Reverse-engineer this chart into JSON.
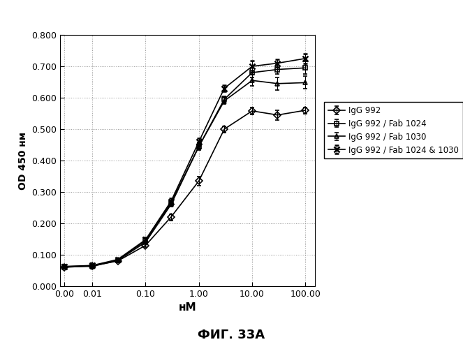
{
  "x": [
    0.003,
    0.01,
    0.03,
    0.1,
    0.3,
    1.0,
    3.0,
    10.0,
    30.0,
    100.0
  ],
  "series": {
    "IgG 992": {
      "y": [
        0.06,
        0.065,
        0.08,
        0.13,
        0.22,
        0.335,
        0.5,
        0.558,
        0.545,
        0.56
      ],
      "yerr": [
        0.005,
        0.004,
        0.004,
        0.005,
        0.01,
        0.015,
        0.01,
        0.012,
        0.015,
        0.01
      ],
      "marker": "D",
      "markersize": 5,
      "color": "#000000",
      "linestyle": "-",
      "label": "IgG 992",
      "fillstyle": "none"
    },
    "IgG 992 / Fab 1024": {
      "y": [
        0.062,
        0.065,
        0.083,
        0.145,
        0.265,
        0.445,
        0.595,
        0.68,
        0.69,
        0.695
      ],
      "yerr": [
        0.004,
        0.003,
        0.004,
        0.006,
        0.008,
        0.012,
        0.01,
        0.015,
        0.015,
        0.02
      ],
      "marker": "s",
      "markersize": 5,
      "color": "#000000",
      "linestyle": "-",
      "label": "IgG 992 / Fab 1024",
      "fillstyle": "none"
    },
    "IgG 992 / Fab 1030": {
      "y": [
        0.062,
        0.063,
        0.082,
        0.14,
        0.26,
        0.445,
        0.59,
        0.655,
        0.645,
        0.648
      ],
      "yerr": [
        0.004,
        0.003,
        0.004,
        0.005,
        0.007,
        0.01,
        0.01,
        0.018,
        0.02,
        0.02
      ],
      "marker": "^",
      "markersize": 5,
      "color": "#000000",
      "linestyle": "-",
      "label": "IgG 992 / Fab 1030",
      "fillstyle": "none"
    },
    "IgG 992 / Fab 1024 & 1030": {
      "y": [
        0.063,
        0.066,
        0.085,
        0.148,
        0.27,
        0.46,
        0.63,
        0.7,
        0.71,
        0.725
      ],
      "yerr": [
        0.004,
        0.004,
        0.005,
        0.007,
        0.009,
        0.012,
        0.01,
        0.018,
        0.012,
        0.015
      ],
      "marker": "x",
      "markersize": 6,
      "color": "#000000",
      "linestyle": "-",
      "label": "IgG 992 / Fab 1024 & 1030",
      "fillstyle": "full"
    }
  },
  "xlabel": "нM",
  "ylabel": "OD 450 нм",
  "ylim": [
    0.0,
    0.8
  ],
  "yticks": [
    0.0,
    0.1,
    0.2,
    0.3,
    0.4,
    0.5,
    0.6,
    0.7,
    0.8
  ],
  "xtick_positions": [
    0.003,
    0.01,
    0.1,
    1.0,
    10.0,
    100.0
  ],
  "xtick_labels": [
    "0.00",
    "0.01",
    "0.10",
    "1.00",
    "10.00",
    "100.00"
  ],
  "fig_title": "ФИГ. 33A",
  "background_color": "#ffffff",
  "plot_bg_color": "#ffffff",
  "grid_color": "#999999",
  "grid_style": ":"
}
